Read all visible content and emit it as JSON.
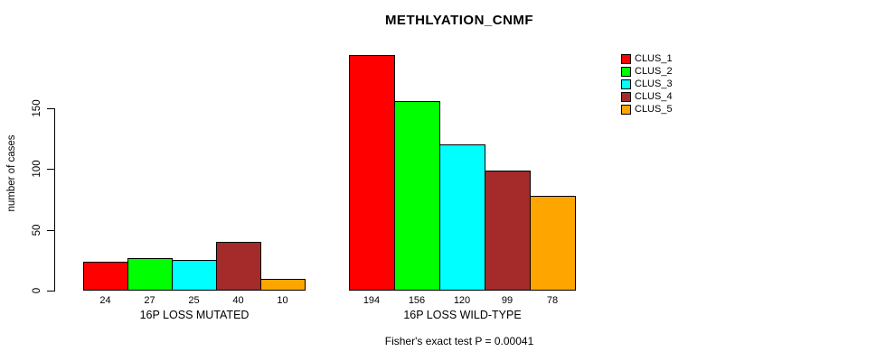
{
  "chart_data": {
    "type": "bar",
    "title": "METHLYATION_CNMF",
    "ylabel": "number of cases",
    "xlabel": "",
    "ylim": [
      0,
      150
    ],
    "yticks": [
      0,
      50,
      100,
      150
    ],
    "grid": false,
    "legend_position": "right-outside",
    "series_names": [
      "CLUS_1",
      "CLUS_2",
      "CLUS_3",
      "CLUS_4",
      "CLUS_5"
    ],
    "colors": [
      "#FF0000",
      "#00FF00",
      "#00FFFF",
      "#A52A2A",
      "#FFA500"
    ],
    "groups": [
      {
        "label": "16P LOSS MUTATED",
        "values": [
          24,
          27,
          25,
          40,
          10
        ]
      },
      {
        "label": "16P LOSS WILD-TYPE",
        "values": [
          194,
          156,
          120,
          99,
          78
        ]
      }
    ],
    "annotation": "Fisher's exact test P = 0.00041"
  }
}
